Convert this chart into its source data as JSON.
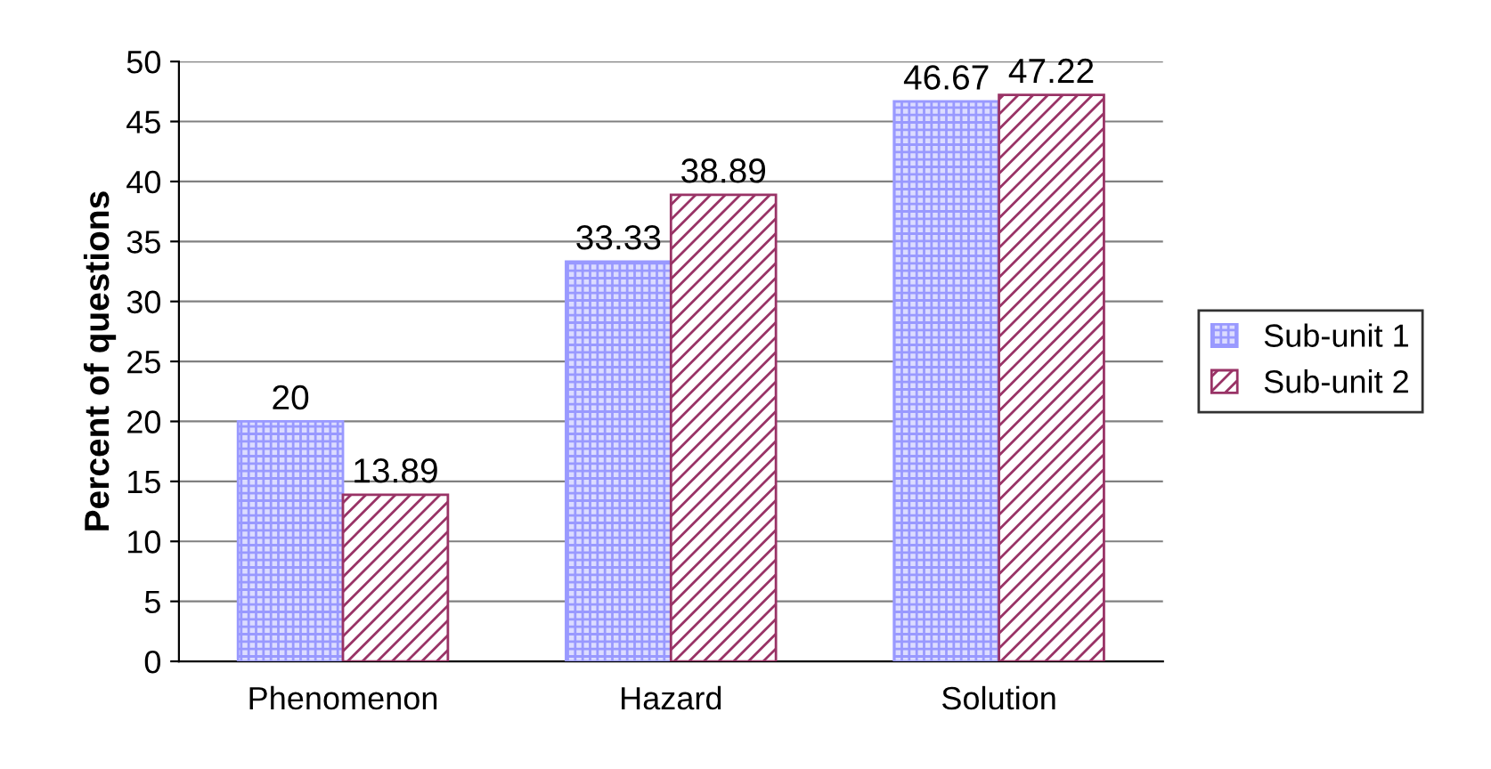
{
  "chart_data": {
    "type": "bar",
    "ylabel": "Percent of questions",
    "categories": [
      "Phenomenon",
      "Hazard",
      "Solution"
    ],
    "series": [
      {
        "name": "Sub-unit 1",
        "color": "#9999ff",
        "values": [
          20,
          33.33,
          46.67
        ]
      },
      {
        "name": "Sub-unit 2",
        "color": "#993366",
        "values": [
          13.89,
          38.89,
          47.22
        ]
      }
    ],
    "ylim": [
      0,
      50
    ],
    "yticks": [
      0,
      5,
      10,
      15,
      20,
      25,
      30,
      35,
      40,
      45,
      50
    ],
    "grid": "y",
    "legend": "right",
    "data_labels": true
  }
}
